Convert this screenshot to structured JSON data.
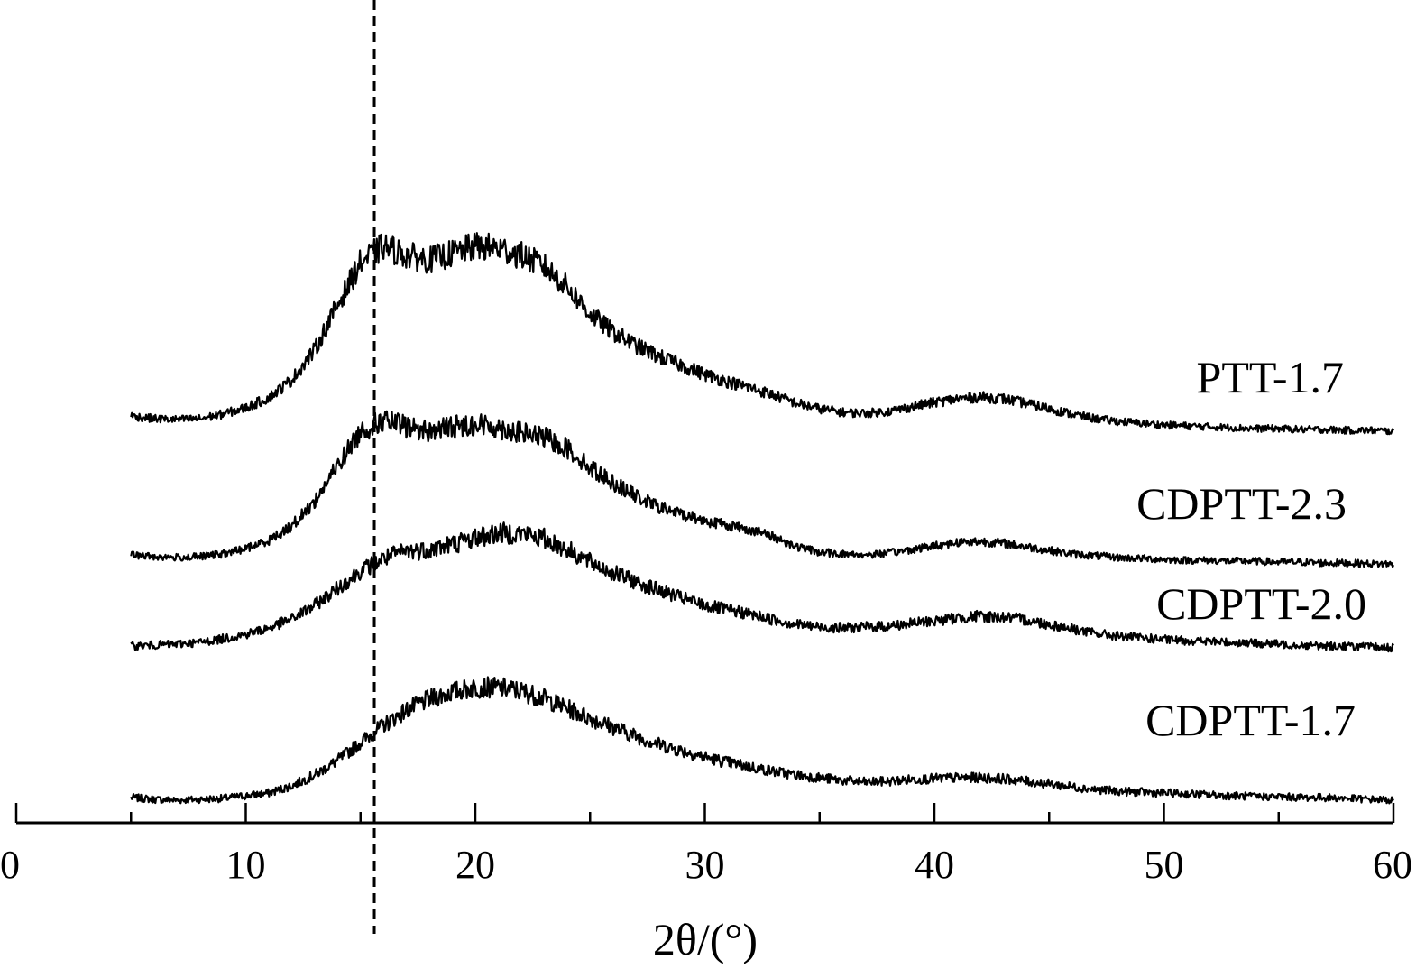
{
  "chart_data": {
    "type": "line",
    "xlabel": "2θ/(°)",
    "ylabel": "",
    "xlim": [
      0,
      60
    ],
    "x_ticks": [
      "0",
      "10",
      "20",
      "30",
      "40",
      "50",
      "60"
    ],
    "x_minor_tick_step": 5,
    "reference_line": {
      "x": 15.6,
      "style": "dashed"
    },
    "y_axis_shown": false,
    "grid": false,
    "legend": "none (series labelled directly at right)",
    "noise": "high-frequency jitter on every trace",
    "colors": {
      "line": "#000000",
      "background": "#ffffff"
    },
    "series": [
      {
        "name": "CDPTT-1.7",
        "offset": 0,
        "x": [
          5,
          6,
          7,
          8,
          9,
          10,
          11,
          12,
          13,
          14,
          15,
          16,
          17,
          18,
          19,
          20,
          21,
          22,
          23,
          24,
          25,
          26,
          27,
          28,
          29,
          30,
          31,
          32,
          33,
          34,
          35,
          36,
          37,
          38,
          39,
          40,
          41,
          42,
          43,
          44,
          45,
          46,
          47,
          48,
          49,
          50,
          51,
          52,
          53,
          54,
          55,
          56,
          57,
          58,
          59,
          60
        ],
        "y": [
          4,
          2,
          1,
          2,
          3,
          6,
          9,
          17,
          29,
          45,
          65,
          84,
          101,
          113,
          121,
          126,
          126,
          122,
          114,
          103,
          92,
          82,
          72,
          63,
          56,
          49,
          43,
          38,
          33,
          29,
          26,
          23,
          21,
          22,
          24,
          25,
          26,
          26,
          25,
          22,
          19,
          16,
          13,
          11,
          10,
          9,
          8,
          7,
          6,
          5,
          5,
          4,
          4,
          3,
          2,
          1
        ]
      },
      {
        "name": "CDPTT-2.0",
        "offset": 165,
        "x": [
          5,
          6,
          7,
          8,
          9,
          10,
          11,
          12,
          13,
          14,
          15,
          16,
          17,
          18,
          19,
          20,
          21,
          22,
          23,
          24,
          25,
          26,
          27,
          28,
          29,
          30,
          31,
          32,
          33,
          34,
          35,
          36,
          37,
          38,
          39,
          40,
          41,
          42,
          43,
          44,
          45,
          46,
          47,
          48,
          49,
          50,
          51,
          52,
          53,
          54,
          55,
          56,
          57,
          58,
          59,
          60
        ],
        "y": [
          7,
          8,
          9,
          11,
          15,
          20,
          27,
          37,
          52,
          71,
          90,
          104,
          112,
          114,
          120,
          127,
          132,
          132,
          126,
          114,
          100,
          88,
          78,
          69,
          60,
          52,
          47,
          42,
          36,
          31,
          28,
          27,
          28,
          29,
          32,
          35,
          38,
          40,
          39,
          36,
          31,
          26,
          21,
          18,
          16,
          14,
          13,
          12,
          11,
          10,
          9,
          8,
          7,
          7,
          6,
          5
        ]
      },
      {
        "name": "CDPTT-2.3",
        "offset": 270,
        "x": [
          5,
          6,
          7,
          8,
          9,
          10,
          11,
          12,
          13,
          14,
          15,
          16,
          17,
          18,
          19,
          20,
          21,
          22,
          23,
          24,
          25,
          26,
          27,
          28,
          29,
          30,
          31,
          32,
          33,
          34,
          35,
          36,
          37,
          38,
          39,
          40,
          41,
          42,
          43,
          44,
          45,
          46,
          47,
          48,
          49,
          50,
          51,
          52,
          53,
          54,
          55,
          56,
          57,
          58,
          59,
          60
        ],
        "y": [
          3,
          1,
          0,
          1,
          4,
          10,
          19,
          35,
          62,
          102,
          140,
          152,
          145,
          140,
          145,
          148,
          144,
          138,
          133,
          121,
          100,
          83,
          68,
          56,
          48,
          41,
          36,
          31,
          23,
          12,
          6,
          4,
          3,
          5,
          9,
          13,
          17,
          18,
          16,
          12,
          8,
          4,
          2,
          0,
          -1,
          -2,
          -3,
          -3,
          -4,
          -4,
          -5,
          -5,
          -6,
          -6,
          -7,
          -7
        ]
      },
      {
        "name": "PTT-1.7",
        "offset": 415,
        "x": [
          5,
          6,
          7,
          8,
          9,
          10,
          11,
          12,
          13,
          14,
          15,
          16,
          17,
          18,
          19,
          20,
          21,
          22,
          23,
          24,
          25,
          26,
          27,
          28,
          29,
          30,
          31,
          32,
          33,
          34,
          35,
          36,
          37,
          38,
          39,
          40,
          41,
          42,
          43,
          44,
          45,
          46,
          47,
          48,
          49,
          50,
          51,
          52,
          53,
          54,
          55,
          56,
          57,
          58,
          59,
          60
        ],
        "y": [
          12,
          9,
          8,
          9,
          14,
          21,
          32,
          52,
          85,
          135,
          182,
          200,
          190,
          185,
          192,
          200,
          198,
          190,
          178,
          155,
          125,
          105,
          90,
          78,
          68,
          58,
          50,
          43,
          35,
          26,
          20,
          16,
          15,
          17,
          22,
          27,
          31,
          33,
          31,
          26,
          20,
          14,
          9,
          6,
          4,
          2,
          1,
          0,
          -1,
          -2,
          -2,
          -3,
          -3,
          -4,
          -4,
          -5
        ]
      }
    ]
  }
}
